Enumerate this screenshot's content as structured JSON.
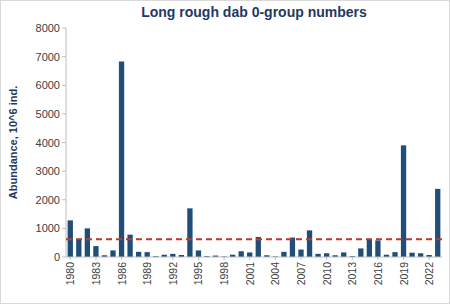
{
  "chart_data": {
    "type": "bar",
    "title": "Long rough dab 0-group numbers",
    "y_label": "Abundance, 10^6 ind.",
    "categories": [
      "1980",
      null,
      null,
      "1983",
      null,
      null,
      "1986",
      null,
      null,
      "1989",
      null,
      null,
      "1992",
      null,
      null,
      "1995",
      null,
      null,
      "1998",
      null,
      null,
      "2001",
      null,
      null,
      "2004",
      null,
      null,
      "2007",
      null,
      null,
      "2010",
      null,
      null,
      "2013",
      null,
      null,
      "2016",
      null,
      null,
      "2019",
      null,
      null,
      "2022",
      null
    ],
    "values": [
      1280,
      600,
      1000,
      380,
      60,
      230,
      6830,
      780,
      180,
      170,
      30,
      80,
      110,
      70,
      1700,
      230,
      30,
      50,
      20,
      80,
      200,
      160,
      700,
      60,
      20,
      180,
      680,
      260,
      930,
      110,
      130,
      60,
      160,
      30,
      300,
      600,
      580,
      80,
      170,
      3900,
      150,
      130,
      70,
      2380
    ],
    "color": "#1f4e79",
    "ylim": [
      0,
      8000
    ],
    "yticks": [
      0,
      1000,
      2000,
      3000,
      4000,
      5000,
      6000,
      7000,
      8000
    ],
    "grid": false,
    "reference_line": {
      "value": 620,
      "color": "#c0392b",
      "line_style": "dashed"
    }
  }
}
